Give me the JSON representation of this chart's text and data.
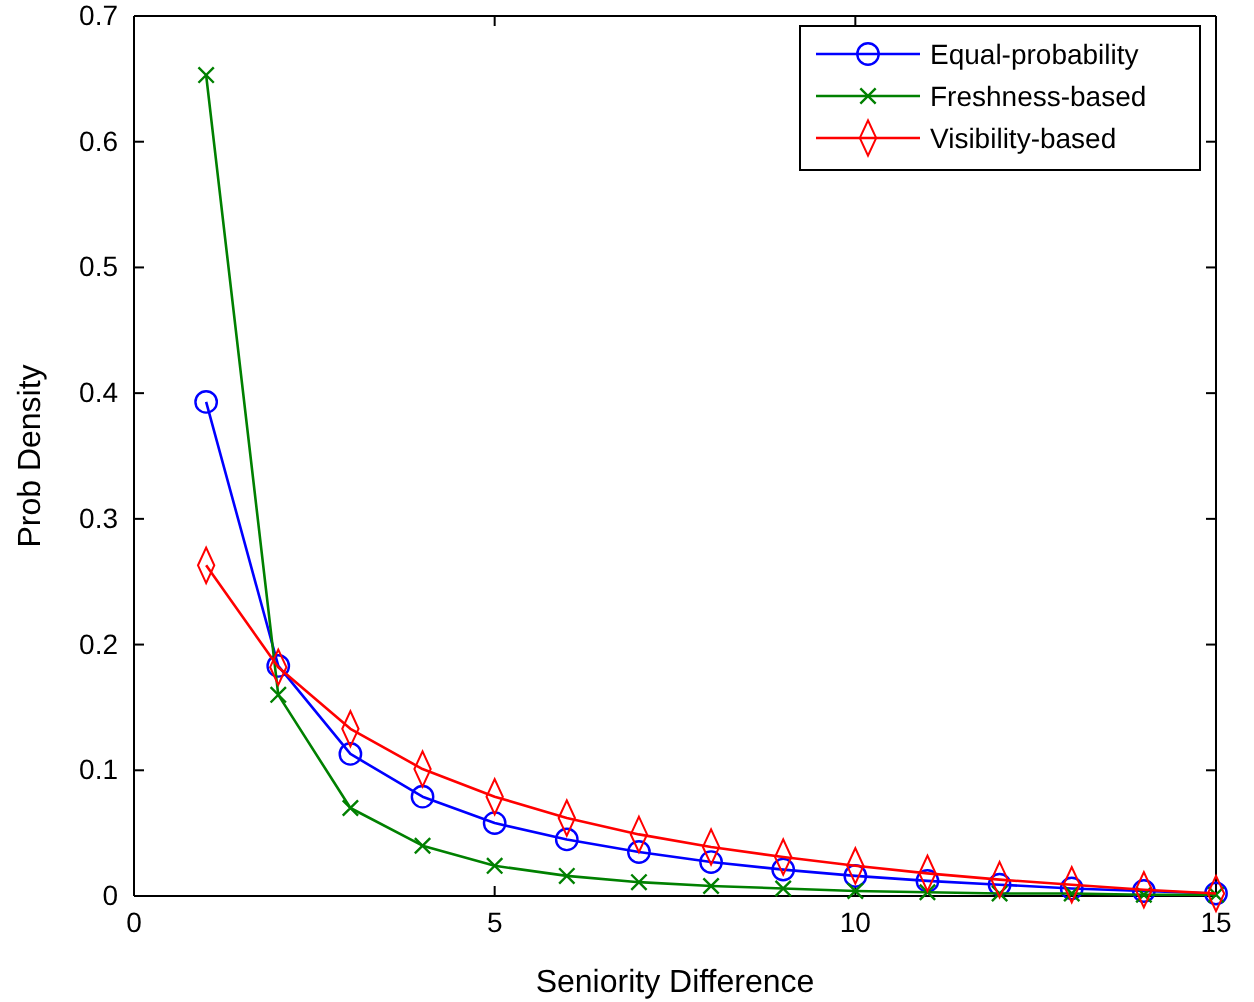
{
  "chart_data": {
    "type": "line",
    "xlabel": "Seniority Difference",
    "ylabel": "Prob Density",
    "x": [
      1,
      2,
      3,
      4,
      5,
      6,
      7,
      8,
      9,
      10,
      11,
      12,
      13,
      14,
      15
    ],
    "series": [
      {
        "name": "Equal-probability",
        "color": "#0000ff",
        "marker": "circle",
        "values": [
          0.393,
          0.183,
          0.113,
          0.079,
          0.058,
          0.045,
          0.035,
          0.027,
          0.021,
          0.016,
          0.012,
          0.009,
          0.006,
          0.004,
          0.002
        ]
      },
      {
        "name": "Freshness-based",
        "color": "#008000",
        "marker": "cross",
        "values": [
          0.653,
          0.16,
          0.07,
          0.04,
          0.024,
          0.016,
          0.011,
          0.008,
          0.006,
          0.004,
          0.003,
          0.002,
          0.002,
          0.001,
          0.001
        ]
      },
      {
        "name": "Visibility-based",
        "color": "#ff0000",
        "marker": "diamond",
        "values": [
          0.263,
          0.182,
          0.133,
          0.101,
          0.079,
          0.062,
          0.049,
          0.039,
          0.031,
          0.024,
          0.018,
          0.013,
          0.009,
          0.005,
          0.002
        ]
      }
    ],
    "xlim": [
      0,
      15
    ],
    "xticks": [
      0,
      5,
      10,
      15
    ],
    "ylim": [
      0,
      0.7
    ],
    "yticks": [
      0,
      0.1,
      0.2,
      0.3,
      0.4,
      0.5,
      0.6,
      0.7
    ],
    "legend": "top right",
    "line_style": "solid",
    "grid": false
  }
}
